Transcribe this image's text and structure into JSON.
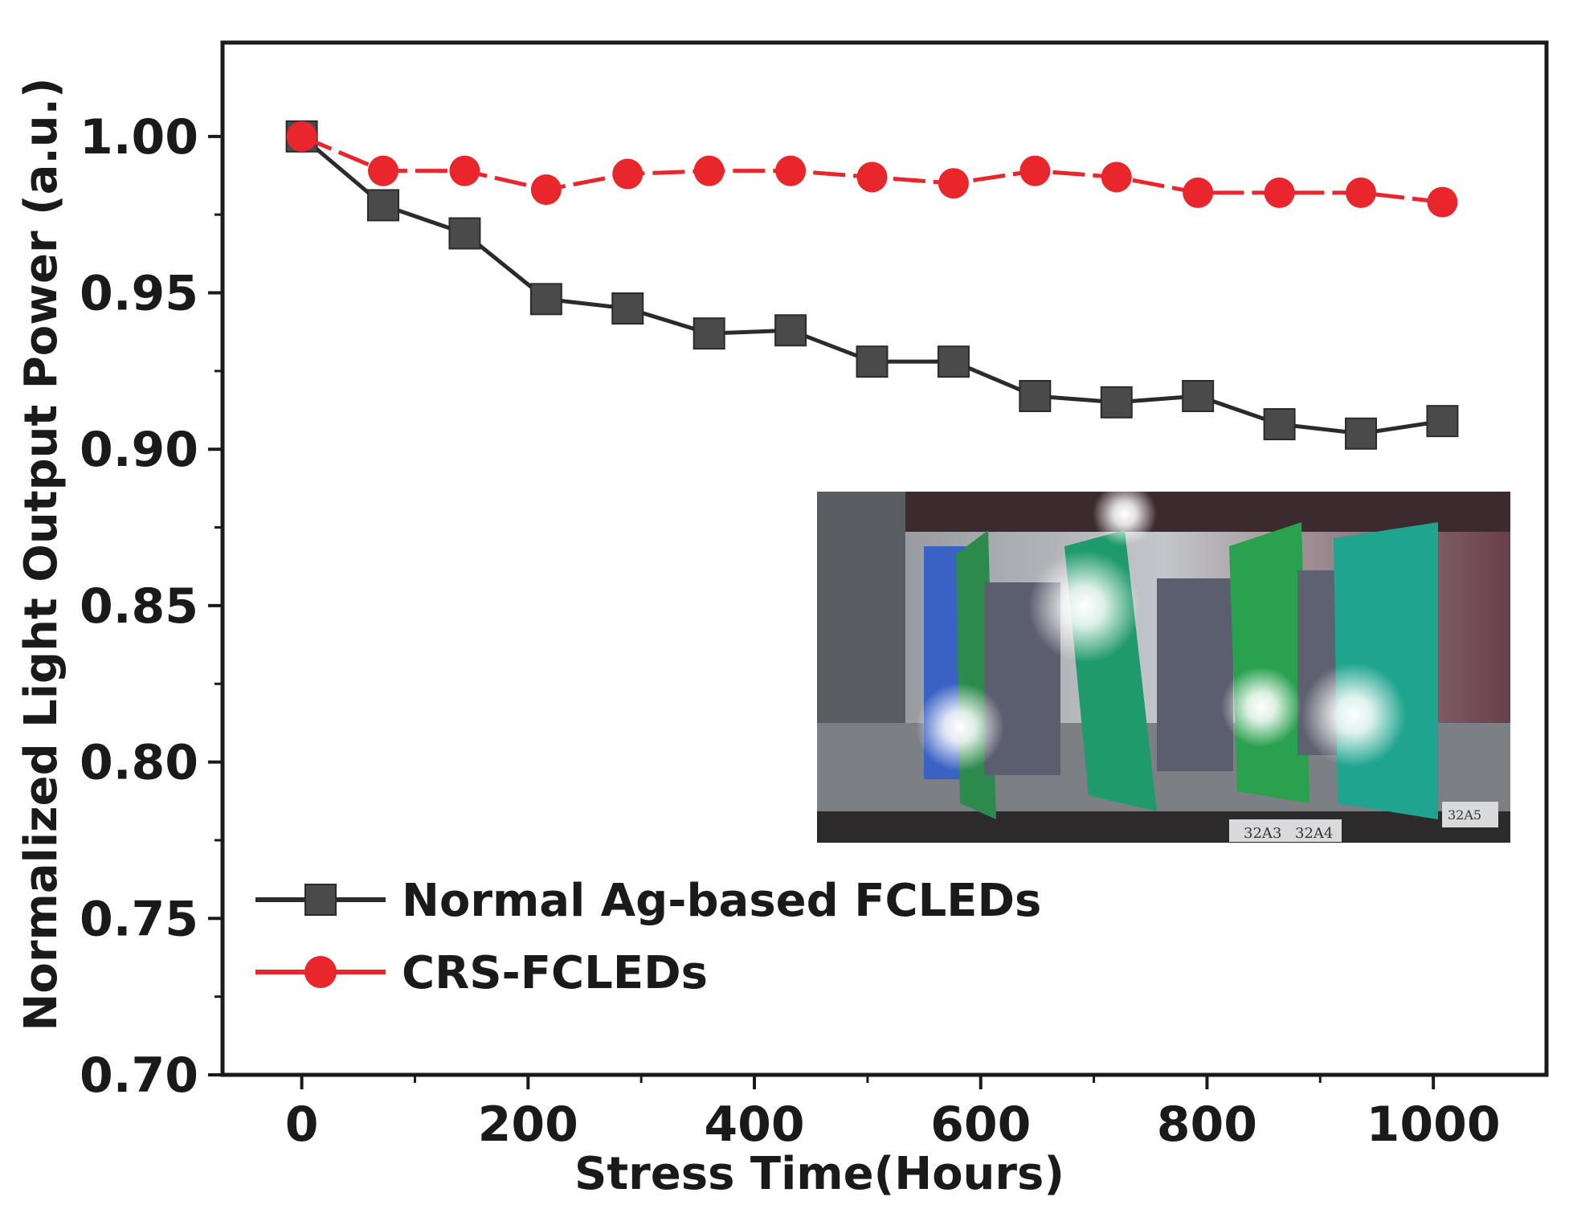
{
  "chart_data": {
    "type": "line",
    "title": "",
    "xlabel": "Stress Time(Hours)",
    "ylabel": "Normalized Light Output Power (a.u.)",
    "xlim": [
      -70,
      1100
    ],
    "ylim": [
      0.7,
      1.03
    ],
    "x_ticks": [
      "0",
      "200",
      "400",
      "600",
      "800",
      "1000"
    ],
    "y_ticks": [
      "0.70",
      "0.75",
      "0.80",
      "0.85",
      "0.90",
      "0.95",
      "1.00"
    ],
    "x": [
      0,
      72,
      144,
      216,
      288,
      360,
      432,
      504,
      576,
      648,
      720,
      792,
      864,
      936,
      1008
    ],
    "series": [
      {
        "name": "Normal Ag-based FCLEDs",
        "color": "#2b2b2b",
        "marker": "square",
        "values": [
          1.0,
          0.978,
          0.969,
          0.948,
          0.945,
          0.937,
          0.938,
          0.928,
          0.928,
          0.917,
          0.915,
          0.917,
          0.908,
          0.905,
          0.909
        ]
      },
      {
        "name": "CRS-FCLEDs",
        "color": "#e8262b",
        "marker": "circle",
        "values": [
          1.0,
          0.989,
          0.989,
          0.983,
          0.988,
          0.989,
          0.989,
          0.987,
          0.985,
          0.989,
          0.987,
          0.982,
          0.982,
          0.982,
          0.979
        ]
      }
    ],
    "legend_position": "bottom-left",
    "inset": "photo of LED test boards",
    "inset_labels": [
      "32A3",
      "32A4",
      "32A5"
    ],
    "grid": false
  }
}
